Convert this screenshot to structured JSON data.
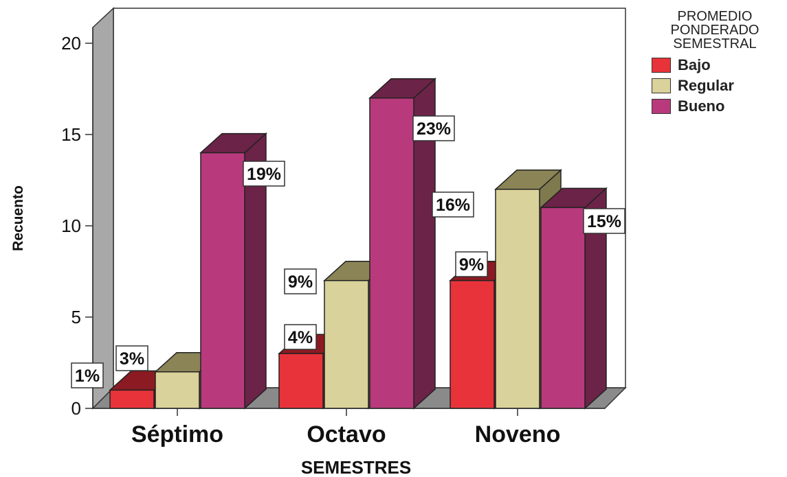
{
  "chart_data": {
    "type": "bar",
    "title": "",
    "xlabel": "SEMESTRES",
    "ylabel": "Recuento",
    "ylim": [
      0,
      20
    ],
    "yticks": [
      0,
      5,
      10,
      15,
      20
    ],
    "categories": [
      "Séptimo",
      "Octavo",
      "Noveno"
    ],
    "legend_title": [
      "PROMEDIO",
      "PONDERADO",
      "SEMESTRAL"
    ],
    "legend_position": "top-right",
    "three_d": true,
    "series": [
      {
        "name": "Bajo",
        "color": "#e8333a",
        "side_color": "#8b1a22",
        "top_color": "#8b1a22",
        "values": [
          1,
          3,
          7
        ],
        "labels": [
          "1%",
          "4%",
          "9%"
        ]
      },
      {
        "name": "Regular",
        "color": "#d9d29a",
        "side_color": "#7f7a4e",
        "top_color": "#8a8456",
        "values": [
          2,
          7,
          12
        ],
        "labels": [
          "3%",
          "9%",
          "16%"
        ]
      },
      {
        "name": "Bueno",
        "color": "#b83a7c",
        "side_color": "#6b2347",
        "top_color": "#6b2347",
        "values": [
          14,
          17,
          11
        ],
        "labels": [
          "19%",
          "23%",
          "15%"
        ]
      }
    ]
  }
}
